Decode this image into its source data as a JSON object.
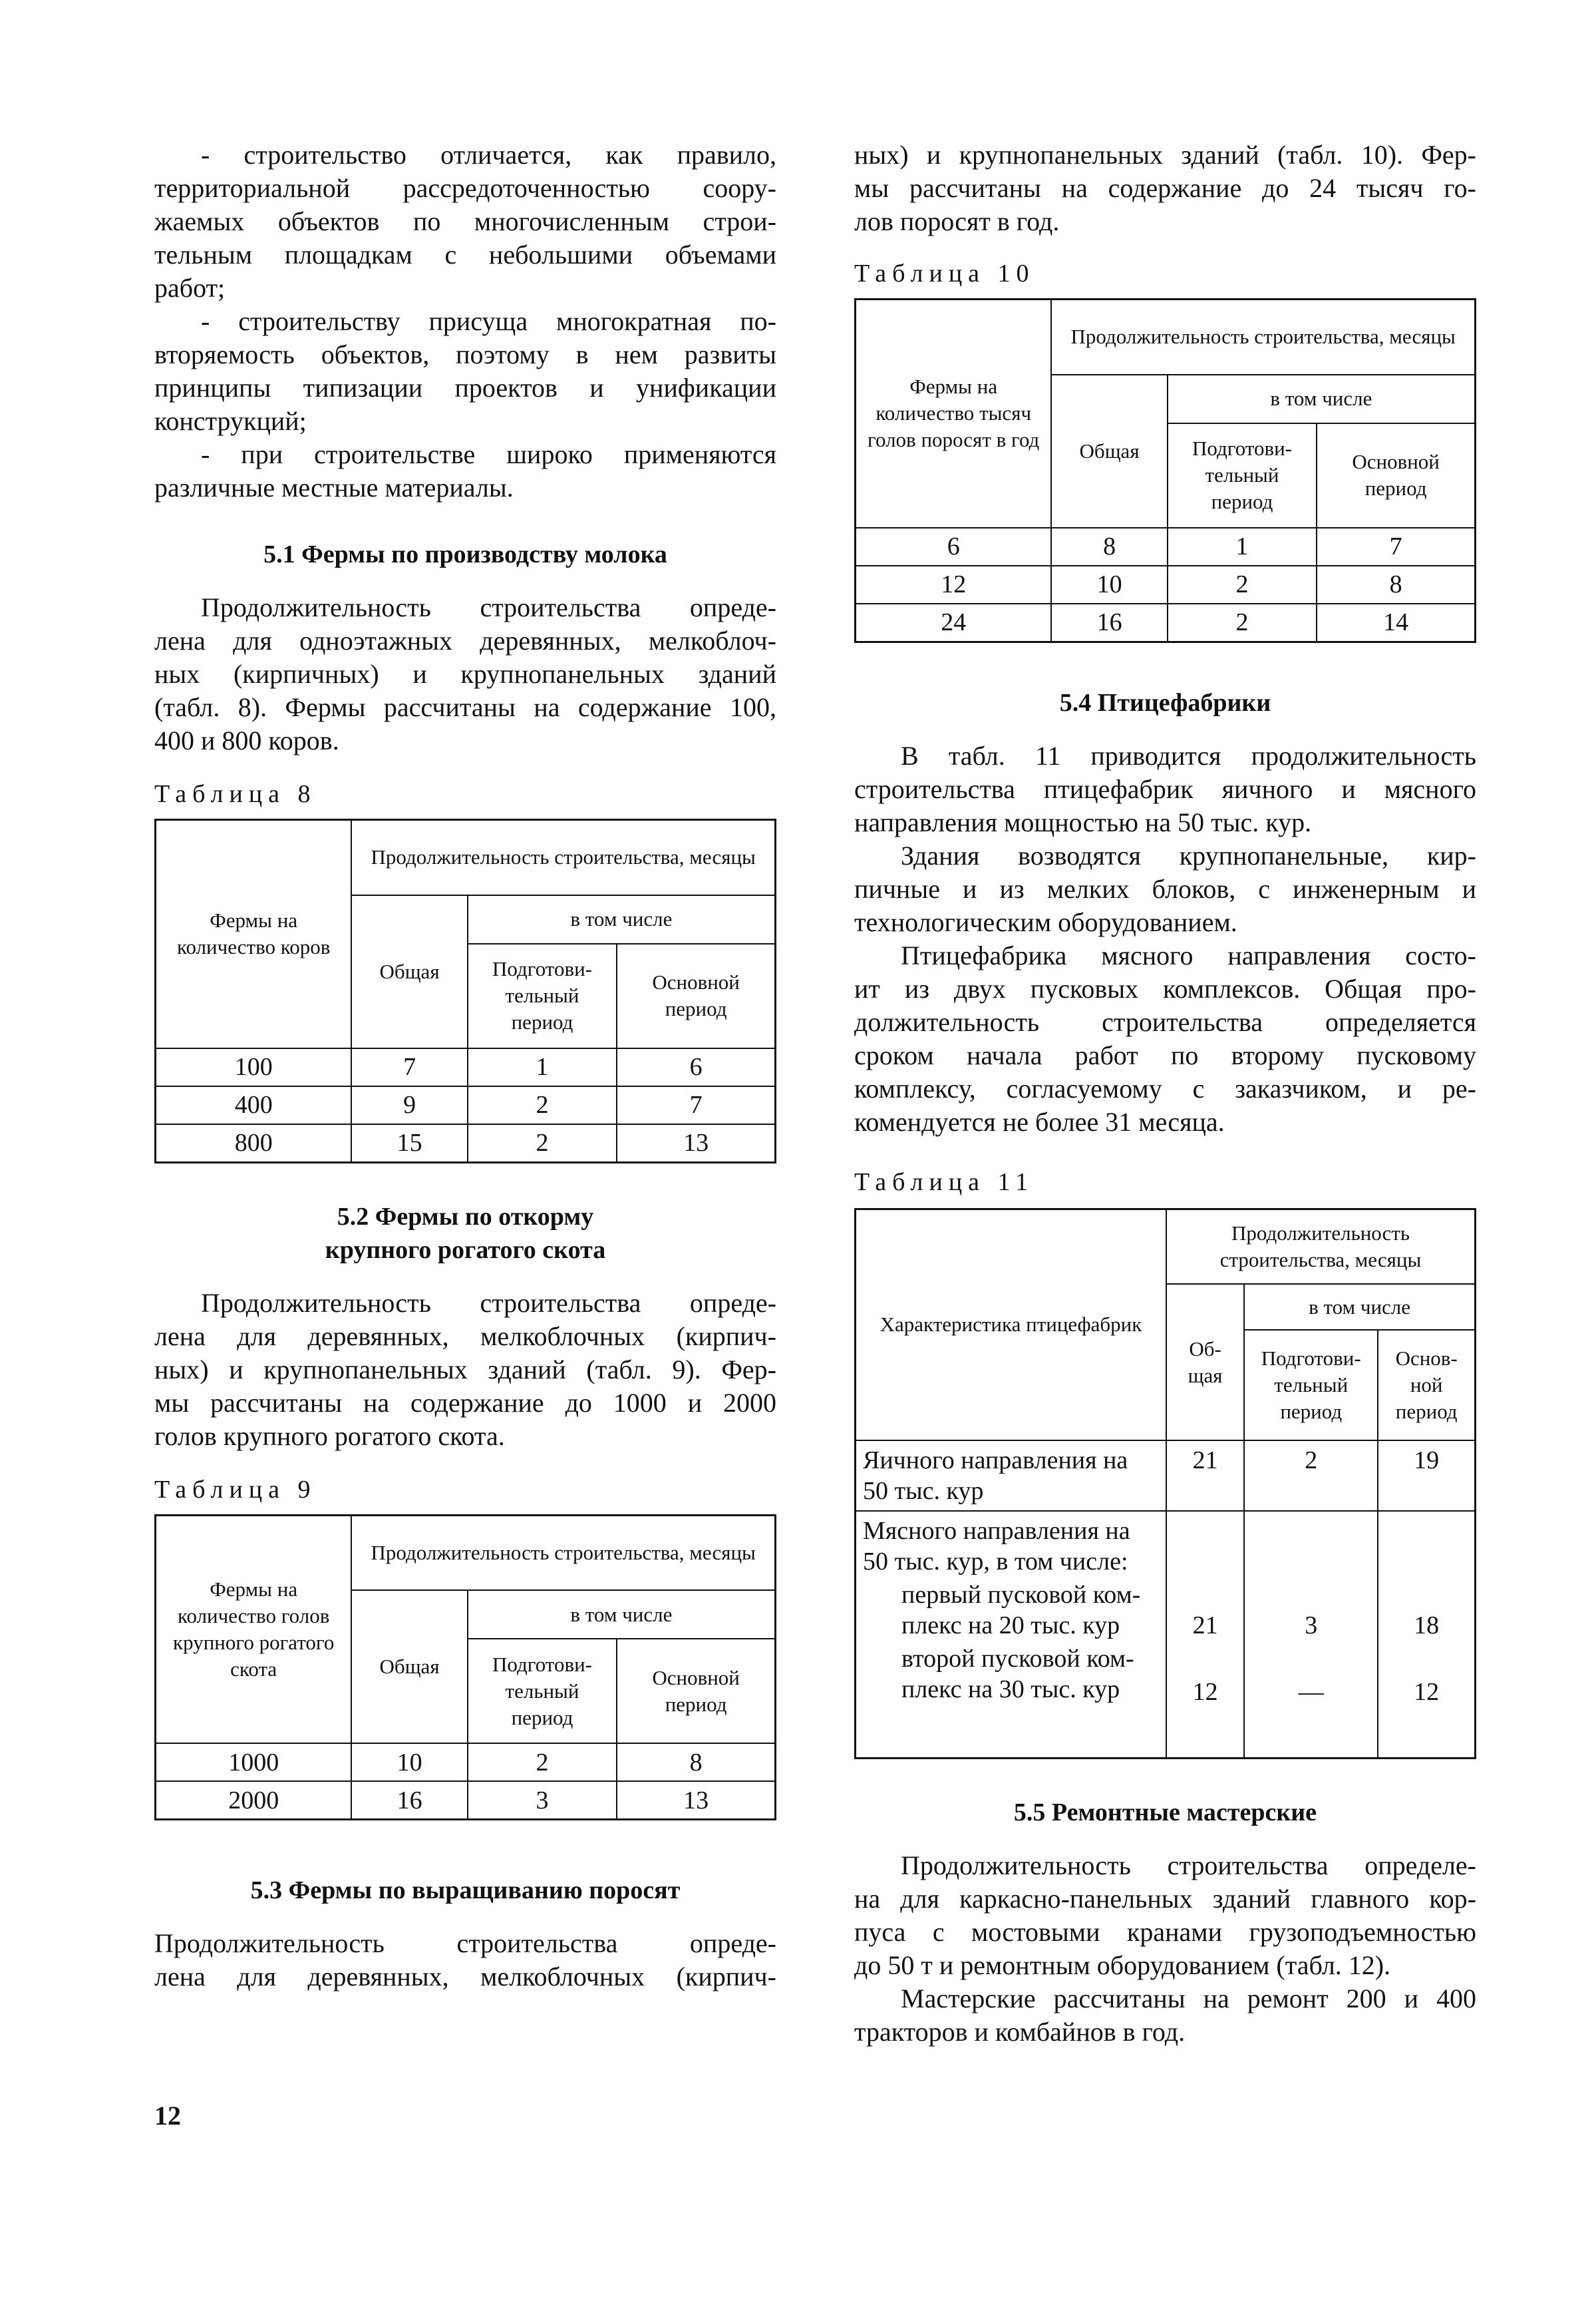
{
  "left": {
    "intro": [
      [
        "- строительство отличается, как правило,",
        "территориальной рассредоточенностью соору-",
        "жаемых объектов по многочисленным строи-",
        "тельным площадкам с небольшими объемами",
        "работ;"
      ],
      [
        "- строительству присуща многократная по-",
        "вторяемость объектов, поэтому в нем развиты",
        "принципы типизации проектов и унификации",
        "конструкций;"
      ],
      [
        "- при строительстве широко применяются",
        "различные местные материалы."
      ]
    ],
    "h51": "5.1 Фермы по производству молока",
    "p51": [
      [
        "Продолжительность строительства опреде-",
        "лена для одноэтажных деревянных, мелкоблоч-",
        "ных (кирпичных) и крупнопанельных зданий",
        "(табл. 8). Фермы рассчитаны на содержание 100,",
        "400 и 800 коров."
      ]
    ],
    "t8": {
      "label": "Таблица 8",
      "c0": "Фермы на количество коров",
      "top": "Продолжительность строительства, месяцы",
      "total": "Общая",
      "incl": "в том числе",
      "prep": "Подготови- тельный период",
      "main": "Основной период",
      "rows": [
        [
          "100",
          "7",
          "1",
          "6"
        ],
        [
          "400",
          "9",
          "2",
          "7"
        ],
        [
          "800",
          "15",
          "2",
          "13"
        ]
      ]
    },
    "h52a": "5.2 Фермы по откорму",
    "h52b": "крупного рогатого скота",
    "p52": [
      [
        "Продолжительность строительства опреде-",
        "лена для деревянных, мелкоблочных (кирпич-",
        "ных) и крупнопанельных зданий (табл. 9). Фер-",
        "мы рассчитаны на содержание до 1000 и 2000",
        "голов крупного рогатого скота."
      ]
    ],
    "t9": {
      "label": "Таблица 9",
      "c0": "Фермы на количество голов крупного рогатого скота",
      "top": "Продолжительность строительства, месяцы",
      "total": "Общая",
      "incl": "в том числе",
      "prep": "Подготови- тельный период",
      "main": "Основной период",
      "rows": [
        [
          "1000",
          "10",
          "2",
          "8"
        ],
        [
          "2000",
          "16",
          "3",
          "13"
        ]
      ]
    },
    "h53": "5.3 Фермы по выращиванию поросят",
    "p53": [
      [
        "Продолжительность строительства опреде-",
        "лена для деревянных, мелкоблочных (кирпич-"
      ]
    ]
  },
  "right": {
    "p53c": [
      [
        "ных) и крупнопанельных зданий (табл. 10). Фер-",
        "мы рассчитаны на содержание до 24 тысяч го-",
        "лов поросят в год."
      ]
    ],
    "t10": {
      "label": "Таблица 10",
      "c0": "Фермы на количество тысяч голов поросят в год",
      "top": "Продолжительность строительства, месяцы",
      "total": "Общая",
      "incl": "в том числе",
      "prep": "Подготови- тельный период",
      "main": "Основной период",
      "rows": [
        [
          "6",
          "8",
          "1",
          "7"
        ],
        [
          "12",
          "10",
          "2",
          "8"
        ],
        [
          "24",
          "16",
          "2",
          "14"
        ]
      ]
    },
    "h54": "5.4 Птицефабрики",
    "p54": [
      [
        "В табл. 11 приводится продолжительность",
        "строительства птицефабрик яичного и мясного",
        "направления мощностью на 50 тыс. кур."
      ],
      [
        "Здания возводятся крупнопанельные, кир-",
        "пичные и из мелких блоков, с инженерным и",
        "технологическим оборудованием."
      ],
      [
        "Птицефабрика мясного направления состо-",
        "ит из двух пусковых комплексов. Общая про-",
        "должительность строительства определяется",
        "сроком начала работ по второму пусковому",
        "комплексу, согласуемому с заказчиком, и ре-",
        "комендуется не более 31 месяца."
      ]
    ],
    "t11": {
      "label": "Таблица 11",
      "c0": "Характеристика птицефабрик",
      "top": "Продолжительность строительства, месяцы",
      "total": "Об- щая",
      "incl": "в том числе",
      "prep": "Подготови- тельный период",
      "main": "Основ- ной период",
      "r1": {
        "name": "Яичного направления на 50 тыс. кур",
        "v": [
          "21",
          "2",
          "19"
        ]
      },
      "r2": {
        "name": "Мясного направления на 50 тыс. кур, в том числе:",
        "s1": "первый пусковой ком- плекс на 20 тыс. кур",
        "v1": [
          "21",
          "3",
          "18"
        ],
        "s2": "второй пусковой ком- плекс на 30 тыс. кур",
        "v2": [
          "12",
          "—",
          "12"
        ]
      }
    },
    "h55": "5.5 Ремонтные мастерские",
    "p55": [
      [
        "Продолжительность строительства определе-",
        "на для каркасно-панельных зданий главного кор-",
        "пуса с мостовыми кранами грузоподъемностью",
        "до 50 т и ремонтным оборудованием (табл. 12)."
      ],
      [
        "Мастерские рассчитаны на ремонт 200 и 400",
        "тракторов и комбайнов в год."
      ]
    ]
  },
  "page_number": "12"
}
